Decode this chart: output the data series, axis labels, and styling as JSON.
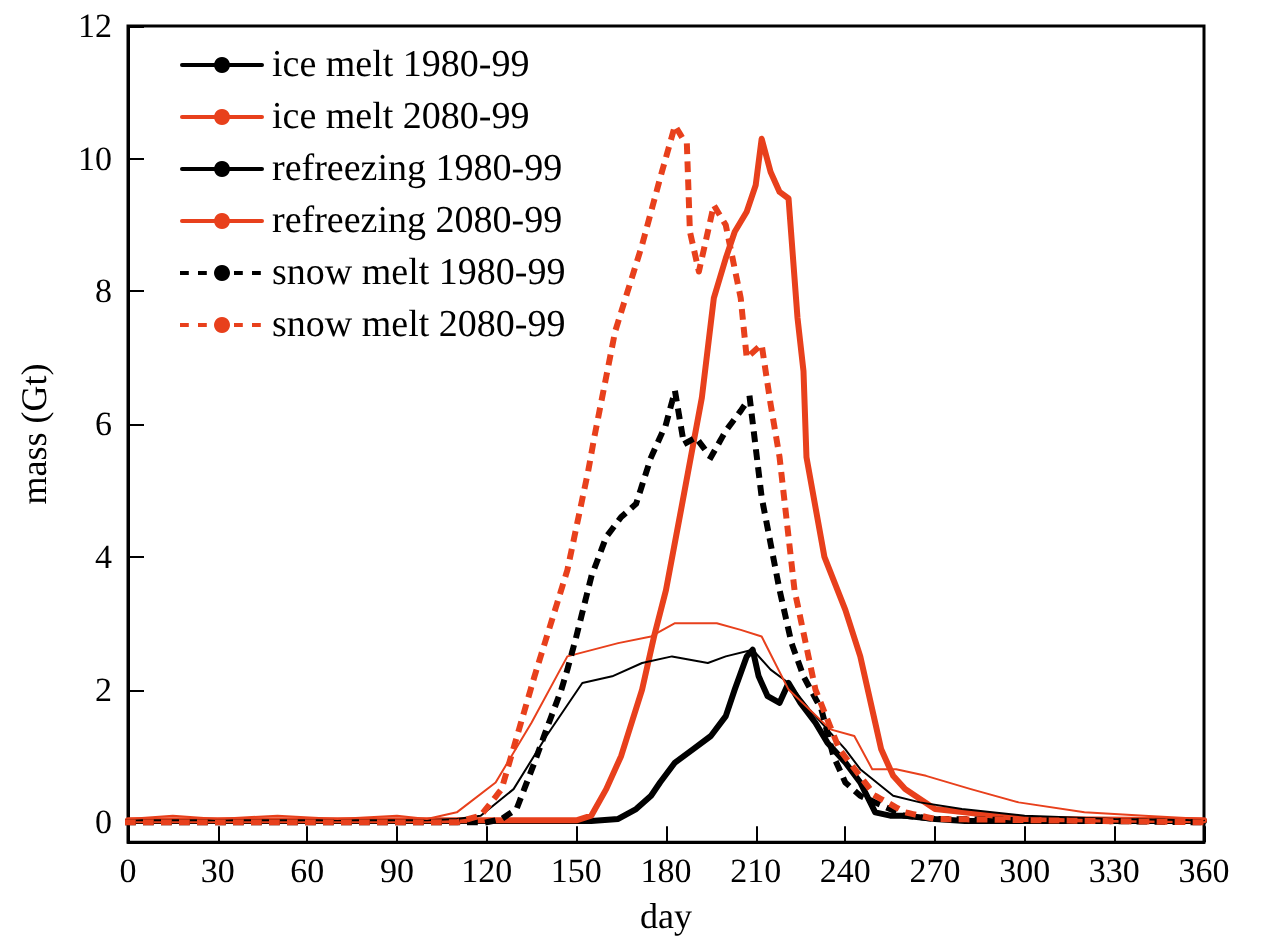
{
  "chart_data": {
    "type": "line",
    "xlabel": "day",
    "ylabel": "mass (Gt)",
    "xlim": [
      0,
      360
    ],
    "xticks": [
      0,
      30,
      60,
      90,
      120,
      150,
      180,
      210,
      240,
      270,
      300,
      330,
      360
    ],
    "ylim": [
      -0.3,
      12
    ],
    "yticks": [
      0,
      2,
      4,
      6,
      8,
      10,
      12
    ],
    "grid": false,
    "legend": "top left",
    "marker": "none",
    "series": [
      {
        "name": "ice melt 1980-99",
        "color": "#000000",
        "line_style": "solid",
        "x": [
          0,
          100,
          155,
          164,
          170,
          175,
          178,
          183,
          189,
          195,
          200,
          203,
          207,
          209,
          211,
          214,
          218,
          221,
          225,
          230,
          234,
          240,
          245,
          250,
          255,
          260,
          270,
          280,
          360
        ],
        "values": [
          0.02,
          0.02,
          0.02,
          0.05,
          0.2,
          0.4,
          0.6,
          0.9,
          1.1,
          1.3,
          1.6,
          2.0,
          2.5,
          2.6,
          2.2,
          1.9,
          1.8,
          2.1,
          1.8,
          1.5,
          1.2,
          0.9,
          0.6,
          0.15,
          0.1,
          0.1,
          0.05,
          0.02,
          0.02
        ]
      },
      {
        "name": "ice melt 2080-99",
        "color": "#e8401c",
        "line_style": "solid",
        "x": [
          0,
          100,
          150,
          155,
          160,
          165,
          172,
          176,
          180,
          185,
          192,
          196,
          200,
          203,
          207,
          210,
          212,
          215,
          218,
          221,
          224,
          226,
          227,
          233,
          240,
          245,
          250,
          252,
          256,
          260,
          265,
          270,
          280,
          290,
          300,
          360
        ],
        "values": [
          0.03,
          0.03,
          0.03,
          0.1,
          0.5,
          1.0,
          2.0,
          2.8,
          3.5,
          4.7,
          6.4,
          7.9,
          8.5,
          8.9,
          9.2,
          9.6,
          10.3,
          9.8,
          9.5,
          9.4,
          7.6,
          6.8,
          5.5,
          4.0,
          3.2,
          2.5,
          1.5,
          1.1,
          0.7,
          0.5,
          0.35,
          0.2,
          0.15,
          0.1,
          0.05,
          0.03
        ]
      },
      {
        "name": "refreezing 1980-99",
        "color": "#000000",
        "line_style": "solid",
        "x": [
          0,
          100,
          110,
          118,
          129,
          140,
          152,
          162,
          172,
          182,
          194,
          200,
          209,
          215,
          221,
          228,
          234,
          240,
          245,
          256,
          265,
          279,
          300,
          330,
          360
        ],
        "values": [
          0.03,
          0.03,
          0.05,
          0.1,
          0.5,
          1.3,
          2.1,
          2.2,
          2.4,
          2.5,
          2.4,
          2.5,
          2.6,
          2.3,
          2.1,
          1.7,
          1.4,
          1.1,
          0.8,
          0.4,
          0.3,
          0.2,
          0.1,
          0.05,
          0.03
        ]
      },
      {
        "name": "refreezing 2080-99",
        "color": "#e8401c",
        "line_style": "solid",
        "x": [
          0,
          15,
          30,
          50,
          70,
          90,
          100,
          110,
          123,
          135,
          147,
          164,
          175,
          183,
          197,
          205,
          212,
          221,
          235,
          243,
          249,
          257,
          267,
          282,
          298,
          320,
          340,
          360
        ],
        "values": [
          0.05,
          0.1,
          0.05,
          0.1,
          0.05,
          0.1,
          0.05,
          0.15,
          0.6,
          1.5,
          2.5,
          2.7,
          2.8,
          3.0,
          3.0,
          2.9,
          2.8,
          2.0,
          1.4,
          1.3,
          0.8,
          0.8,
          0.7,
          0.5,
          0.3,
          0.15,
          0.1,
          0.05
        ]
      },
      {
        "name": "snow melt 1980-99",
        "color": "#000000",
        "line_style": "dotted",
        "x": [
          0,
          120,
          125,
          130,
          136,
          140,
          145,
          147,
          150,
          155,
          160,
          165,
          170,
          175,
          180,
          183,
          186,
          190,
          195,
          200,
          205,
          208,
          212,
          215,
          218,
          222,
          226,
          232,
          236,
          240,
          245,
          250,
          260,
          270,
          360
        ],
        "values": [
          0,
          0,
          0.05,
          0.2,
          0.9,
          1.4,
          2.0,
          2.3,
          2.8,
          3.7,
          4.3,
          4.6,
          4.8,
          5.5,
          6.0,
          6.5,
          5.7,
          5.8,
          5.5,
          5.9,
          6.2,
          6.4,
          4.9,
          4.2,
          3.5,
          2.7,
          2.2,
          1.7,
          1.0,
          0.6,
          0.4,
          0.3,
          0.1,
          0.05,
          0
        ]
      },
      {
        "name": "snow melt 2080-99",
        "color": "#e8401c",
        "line_style": "dotted",
        "x": [
          0,
          110,
          118,
          125,
          136,
          147,
          154,
          156,
          163,
          172,
          178,
          183,
          187,
          188,
          191,
          196,
          200,
          205,
          207,
          212,
          215,
          218,
          223,
          230,
          238,
          250,
          260,
          270,
          360
        ],
        "values": [
          0,
          0,
          0.1,
          0.5,
          2.2,
          3.8,
          5.3,
          5.8,
          7.4,
          8.7,
          9.7,
          10.5,
          10.2,
          8.9,
          8.3,
          9.3,
          9.0,
          7.9,
          7.0,
          7.2,
          6.3,
          5.5,
          3.5,
          2.0,
          1.1,
          0.4,
          0.15,
          0.05,
          0
        ]
      }
    ]
  }
}
